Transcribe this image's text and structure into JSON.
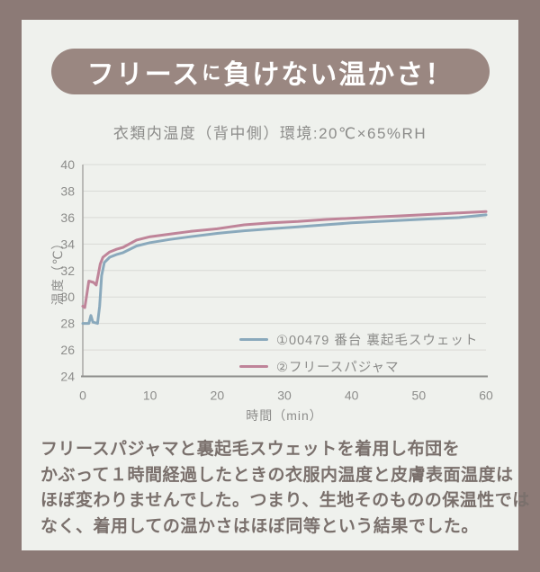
{
  "page": {
    "border_color": "#8c7a76",
    "card_color": "#eff1ed"
  },
  "header": {
    "pill_color": "#9a8781",
    "text_color": "#ffffff",
    "title_full": "フリースに負けない温かさ！",
    "title_parts": [
      {
        "text": "フリース"
      },
      {
        "text": "に"
      },
      {
        "text": "負けない温かさ！"
      }
    ]
  },
  "chart_data": {
    "type": "line",
    "title": "衣類内温度（背中側）環境:20℃×65%RH",
    "xlabel": "時間（min）",
    "ylabel": "温度（℃）",
    "xlim": [
      0,
      60
    ],
    "ylim": [
      24,
      40
    ],
    "xticks": [
      0,
      10,
      20,
      30,
      40,
      50,
      60
    ],
    "yticks": [
      24,
      26,
      28,
      30,
      32,
      34,
      36,
      38,
      40
    ],
    "grid": "horizontal-only",
    "gridline_color": "#d9dad6",
    "yaxis_line_color": "#a8a8a5",
    "xaxis_line_color": "#8e8e8c",
    "legend_position": "inside-lower-right",
    "series": [
      {
        "name": "①00479 番台 裏起毛スウェット",
        "color": "#8aa9bc",
        "points": [
          [
            0,
            28.0
          ],
          [
            0.9,
            28.0
          ],
          [
            1.2,
            28.6
          ],
          [
            1.5,
            28.1
          ],
          [
            2.2,
            28.0
          ],
          [
            2.5,
            29.3
          ],
          [
            2.8,
            31.6
          ],
          [
            3.2,
            32.6
          ],
          [
            4,
            33.0
          ],
          [
            5,
            33.2
          ],
          [
            6,
            33.35
          ],
          [
            8,
            33.85
          ],
          [
            10,
            34.1
          ],
          [
            13,
            34.35
          ],
          [
            16,
            34.55
          ],
          [
            20,
            34.8
          ],
          [
            24,
            35.0
          ],
          [
            28,
            35.15
          ],
          [
            32,
            35.3
          ],
          [
            36,
            35.45
          ],
          [
            40,
            35.6
          ],
          [
            44,
            35.7
          ],
          [
            48,
            35.8
          ],
          [
            52,
            35.9
          ],
          [
            56,
            36.0
          ],
          [
            60,
            36.2
          ]
        ]
      },
      {
        "name": "②フリースパジャマ",
        "color": "#bf8499",
        "points": [
          [
            0,
            29.3
          ],
          [
            0.3,
            29.2
          ],
          [
            0.6,
            30.2
          ],
          [
            0.9,
            31.2
          ],
          [
            1.6,
            31.1
          ],
          [
            2.0,
            30.9
          ],
          [
            2.3,
            31.7
          ],
          [
            2.6,
            32.5
          ],
          [
            3,
            33.0
          ],
          [
            4,
            33.4
          ],
          [
            5,
            33.6
          ],
          [
            6,
            33.75
          ],
          [
            8,
            34.3
          ],
          [
            10,
            34.55
          ],
          [
            13,
            34.75
          ],
          [
            16,
            34.95
          ],
          [
            20,
            35.15
          ],
          [
            24,
            35.45
          ],
          [
            28,
            35.6
          ],
          [
            32,
            35.7
          ],
          [
            36,
            35.85
          ],
          [
            40,
            35.95
          ],
          [
            44,
            36.05
          ],
          [
            48,
            36.15
          ],
          [
            52,
            36.25
          ],
          [
            56,
            36.35
          ],
          [
            60,
            36.45
          ]
        ]
      }
    ]
  },
  "body": {
    "text_color": "#7a706c",
    "lines": [
      "フリースパジャマと裏起毛スウェットを着用し布団を",
      "かぶって１時間経過したときの衣服内温度と皮膚表面温度は",
      "ほぼ変わりませんでした。つまり、生地そのものの保温性では",
      "なく、着用しての温かさはほぼ同等という結果でした。"
    ]
  }
}
